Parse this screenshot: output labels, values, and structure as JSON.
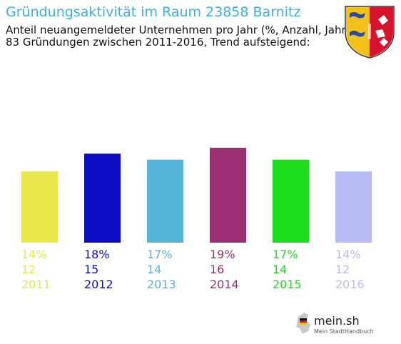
{
  "header": {
    "title": "Gründungsaktivität im Raum 23858 Barnitz",
    "subtitle_line1": "Anteil neuangemeldeter Unternehmen pro Jahr (%, Anzahl, Jahr)",
    "subtitle_line2": "83 Gründungen zwischen 2011-2016, Trend aufsteigend:"
  },
  "branding": {
    "logo_text": "mein.sh",
    "logo_tagline": "Mein StadtHandbuch"
  },
  "chart_data": {
    "type": "bar",
    "categories": [
      "2011",
      "2012",
      "2013",
      "2014",
      "2015",
      "2016"
    ],
    "percent_labels": [
      "14%",
      "18%",
      "17%",
      "19%",
      "17%",
      "14%"
    ],
    "values": [
      12,
      15,
      14,
      16,
      14,
      12
    ],
    "colors": [
      "#e8e84a",
      "#0c0cc2",
      "#56b4d8",
      "#9b2f73",
      "#1ddd1d",
      "#b8bcf5"
    ],
    "grid": false,
    "legend": "none"
  }
}
